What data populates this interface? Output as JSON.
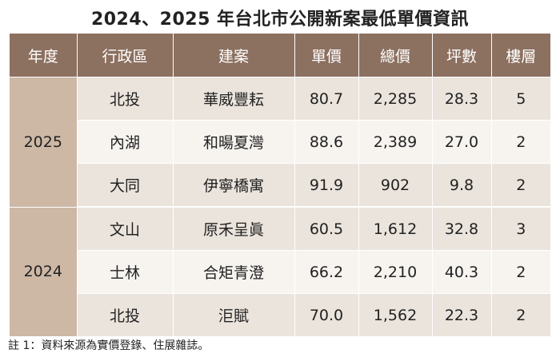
{
  "title": "2024、2025 年台北市公開新案最低單價資訊",
  "headers": [
    "年度",
    "行政區",
    "建案",
    "單價",
    "總價",
    "坪數",
    "樓層"
  ],
  "groups": [
    {
      "year": "2025",
      "rows": [
        {
          "district": "北投",
          "project": "華威豐耘",
          "unit_price": "80.7",
          "total_price": "2,285",
          "area": "28.3",
          "floor": "5"
        },
        {
          "district": "內湖",
          "project": "和暘夏灣",
          "unit_price": "88.6",
          "total_price": "2,389",
          "area": "27.0",
          "floor": "2"
        },
        {
          "district": "大同",
          "project": "伊寧橋寓",
          "unit_price": "91.9",
          "total_price": "902",
          "area": "9.8",
          "floor": "2"
        }
      ]
    },
    {
      "year": "2024",
      "rows": [
        {
          "district": "文山",
          "project": "原禾呈眞",
          "unit_price": "60.5",
          "total_price": "1,612",
          "area": "32.8",
          "floor": "3"
        },
        {
          "district": "士林",
          "project": "合矩青澄",
          "unit_price": "66.2",
          "total_price": "2,210",
          "area": "40.3",
          "floor": "2"
        },
        {
          "district": "北投",
          "project": "洰賦",
          "unit_price": "70.0",
          "total_price": "1,562",
          "area": "22.3",
          "floor": "2"
        }
      ]
    }
  ],
  "note": "註 1：資料來源為實價登錄、住展雜誌。",
  "colors": {
    "header_bg": "#8c7060",
    "year_bg": "#cdb8a5",
    "row_light": "#ebe4dc",
    "row_white": "#f7f4f0"
  }
}
